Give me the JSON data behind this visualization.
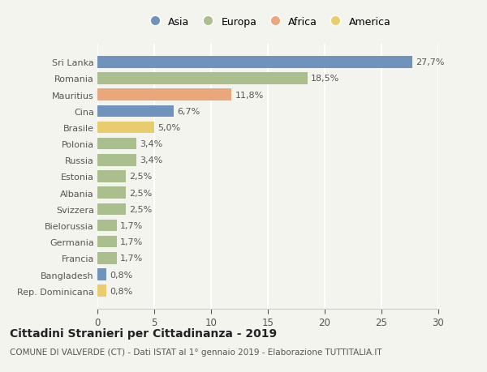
{
  "countries": [
    "Sri Lanka",
    "Romania",
    "Mauritius",
    "Cina",
    "Brasile",
    "Polonia",
    "Russia",
    "Estonia",
    "Albania",
    "Svizzera",
    "Bielorussia",
    "Germania",
    "Francia",
    "Bangladesh",
    "Rep. Dominicana"
  ],
  "values": [
    27.7,
    18.5,
    11.8,
    6.7,
    5.0,
    3.4,
    3.4,
    2.5,
    2.5,
    2.5,
    1.7,
    1.7,
    1.7,
    0.8,
    0.8
  ],
  "labels": [
    "27,7%",
    "18,5%",
    "11,8%",
    "6,7%",
    "5,0%",
    "3,4%",
    "3,4%",
    "2,5%",
    "2,5%",
    "2,5%",
    "1,7%",
    "1,7%",
    "1,7%",
    "0,8%",
    "0,8%"
  ],
  "continents": [
    "Asia",
    "Europa",
    "Africa",
    "Asia",
    "America",
    "Europa",
    "Europa",
    "Europa",
    "Europa",
    "Europa",
    "Europa",
    "Europa",
    "Europa",
    "Asia",
    "America"
  ],
  "colors": {
    "Asia": "#7093be",
    "Europa": "#abbe8e",
    "Africa": "#e8a87c",
    "America": "#e8cc6e"
  },
  "legend_order": [
    "Asia",
    "Europa",
    "Africa",
    "America"
  ],
  "xlim": [
    0,
    30
  ],
  "xticks": [
    0,
    5,
    10,
    15,
    20,
    25,
    30
  ],
  "title_bold": "Cittadini Stranieri per Cittadinanza - 2019",
  "subtitle": "COMUNE DI VALVERDE (CT) - Dati ISTAT al 1° gennaio 2019 - Elaborazione TUTTITALIA.IT",
  "background_color": "#f4f4ef",
  "bar_height": 0.72,
  "grid_color": "#ffffff",
  "font_color": "#555555",
  "label_fontsize": 8.0,
  "ytick_fontsize": 8.0,
  "xtick_fontsize": 8.5,
  "legend_fontsize": 9.0,
  "title_fontsize": 10.0,
  "subtitle_fontsize": 7.5
}
